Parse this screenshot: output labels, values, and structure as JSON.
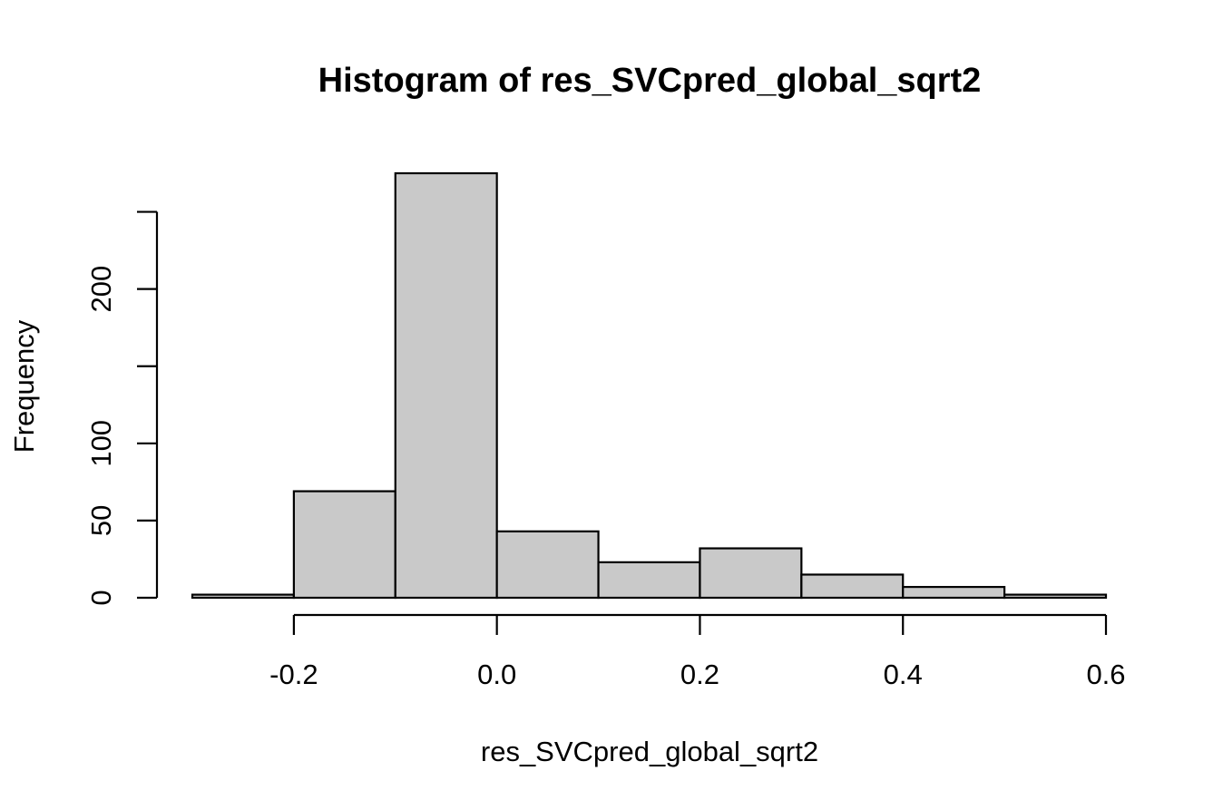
{
  "chart_data": {
    "type": "bar",
    "title": "Histogram of res_SVCpred_global_sqrt2",
    "xlabel": "res_SVCpred_global_sqrt2",
    "ylabel": "Frequency",
    "bins": [
      {
        "start": -0.3,
        "end": -0.2,
        "count": 2
      },
      {
        "start": -0.2,
        "end": -0.1,
        "count": 69
      },
      {
        "start": -0.1,
        "end": 0.0,
        "count": 275
      },
      {
        "start": 0.0,
        "end": 0.1,
        "count": 43
      },
      {
        "start": 0.1,
        "end": 0.2,
        "count": 23
      },
      {
        "start": 0.2,
        "end": 0.3,
        "count": 32
      },
      {
        "start": 0.3,
        "end": 0.4,
        "count": 15
      },
      {
        "start": 0.4,
        "end": 0.5,
        "count": 7
      },
      {
        "start": 0.5,
        "end": 0.6,
        "count": 2
      }
    ],
    "xlim": [
      -0.3,
      0.6
    ],
    "ylim": [
      0,
      275
    ],
    "x_ticks": [
      -0.2,
      0.0,
      0.2,
      0.4,
      0.6
    ],
    "x_tick_labels": [
      "-0.2",
      "0.0",
      "0.2",
      "0.4",
      "0.6"
    ],
    "y_ticks": [
      0,
      50,
      100,
      150,
      200,
      250
    ],
    "y_tick_labels": [
      "0",
      "50",
      "100",
      "",
      "200",
      ""
    ],
    "bar_color": "#c9c9c9",
    "edge_color": "#000000",
    "grid": false,
    "legend": "none"
  }
}
